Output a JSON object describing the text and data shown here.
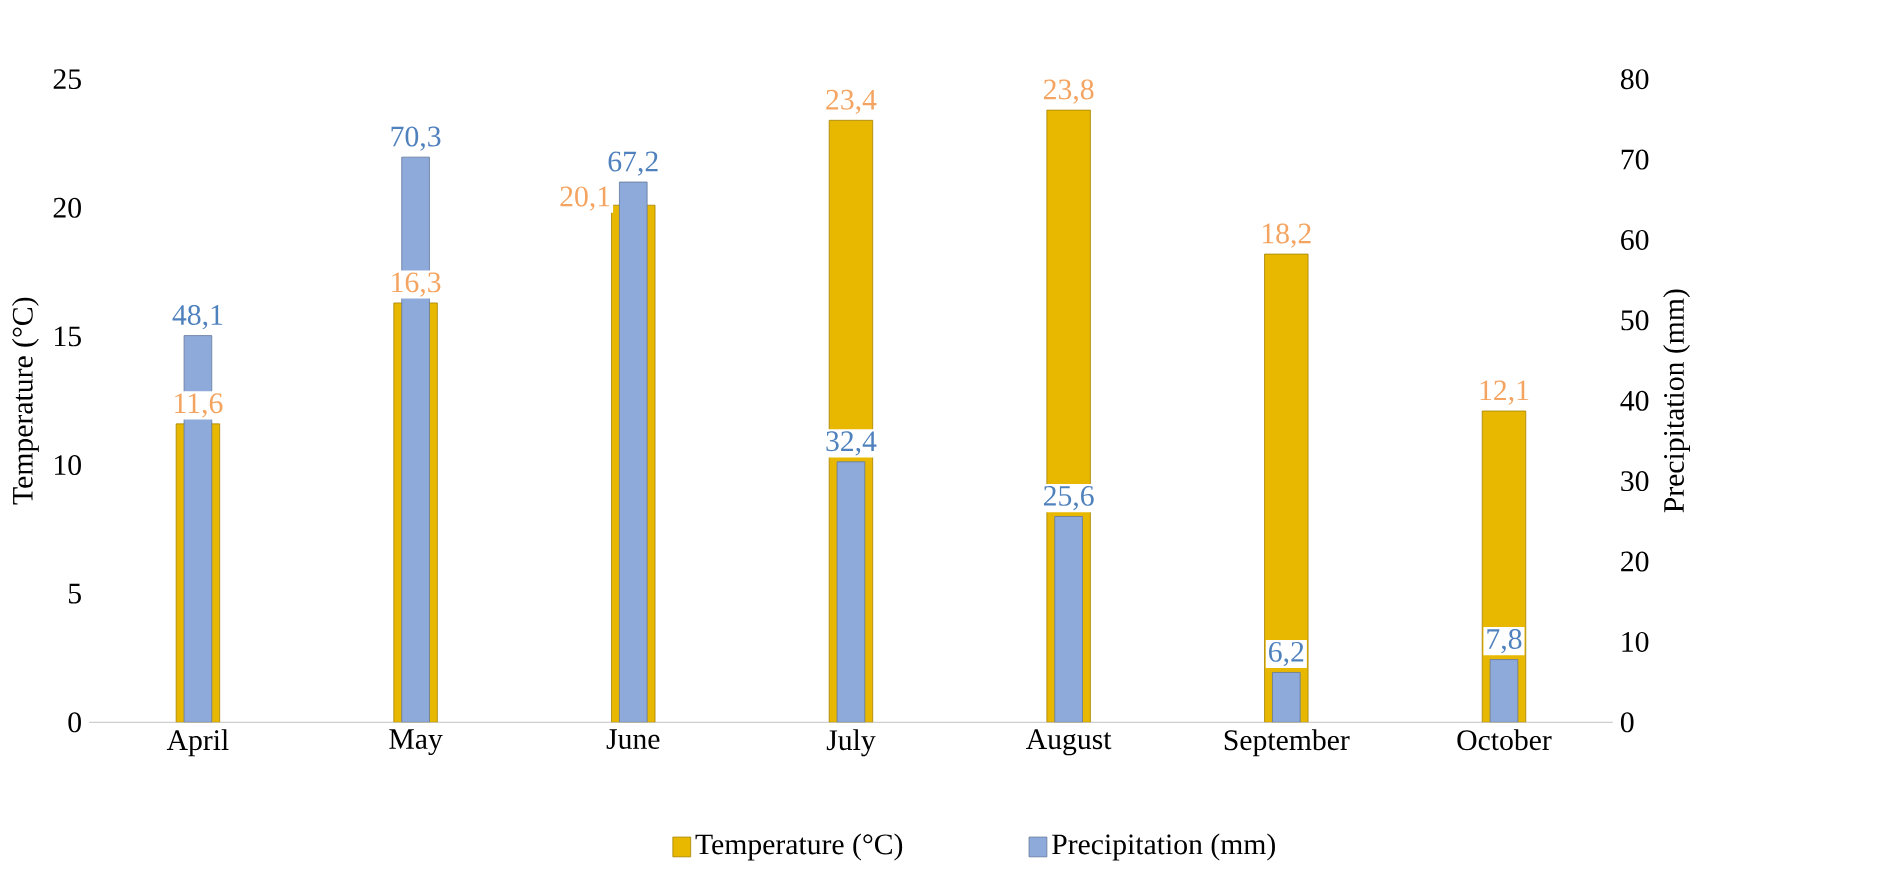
{
  "chart_data": {
    "type": "bar",
    "categories": [
      "April",
      "May",
      "June",
      "July",
      "August",
      "September",
      "October"
    ],
    "ylabel": "Temperature (°C)",
    "y2label": "Precipitation (mm)",
    "ylim": [
      0,
      25
    ],
    "yticks": [
      0,
      5,
      10,
      15,
      20,
      25
    ],
    "y2lim": [
      0,
      80
    ],
    "y2ticks": [
      0,
      10,
      20,
      30,
      40,
      50,
      60,
      70,
      80
    ],
    "legend": "bottom",
    "grid": false,
    "series": [
      {
        "name": "Temperature (°C)",
        "color": "#e8b800",
        "values": [
          11.6,
          16.3,
          20.1,
          23.4,
          23.8,
          18.2,
          12.1
        ],
        "value_labels": [
          "11,6",
          "16,3",
          "20,1",
          "23,4",
          "23,8",
          "18,2",
          "12,1"
        ]
      },
      {
        "name": "Precipitation (mm)",
        "color": "#8eaadb",
        "axis": "y2",
        "values": [
          48.1,
          70.3,
          67.2,
          32.4,
          25.6,
          6.2,
          7.8
        ],
        "value_labels": [
          "48,1",
          "70,3",
          "67,2",
          "32,4",
          "25,6",
          "6,2",
          "7,8"
        ]
      }
    ]
  }
}
